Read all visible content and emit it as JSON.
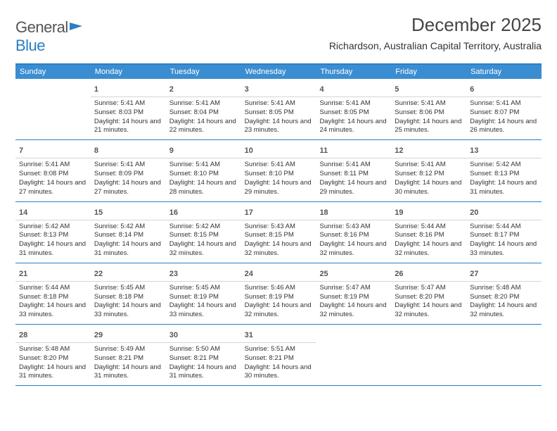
{
  "brand": {
    "name_a": "General",
    "name_b": "Blue"
  },
  "title": "December 2025",
  "location": "Richardson, Australian Capital Territory, Australia",
  "colors": {
    "header_rule": "#2a7ec7",
    "header_bg": "#3b8dd1",
    "header_text": "#ffffff",
    "body_text": "#333333",
    "daynum_border": "#cfd6dc"
  },
  "day_names": [
    "Sunday",
    "Monday",
    "Tuesday",
    "Wednesday",
    "Thursday",
    "Friday",
    "Saturday"
  ],
  "weeks": [
    [
      null,
      {
        "n": "1",
        "sr": "5:41 AM",
        "ss": "8:03 PM",
        "dl": "14 hours and 21 minutes."
      },
      {
        "n": "2",
        "sr": "5:41 AM",
        "ss": "8:04 PM",
        "dl": "14 hours and 22 minutes."
      },
      {
        "n": "3",
        "sr": "5:41 AM",
        "ss": "8:05 PM",
        "dl": "14 hours and 23 minutes."
      },
      {
        "n": "4",
        "sr": "5:41 AM",
        "ss": "8:05 PM",
        "dl": "14 hours and 24 minutes."
      },
      {
        "n": "5",
        "sr": "5:41 AM",
        "ss": "8:06 PM",
        "dl": "14 hours and 25 minutes."
      },
      {
        "n": "6",
        "sr": "5:41 AM",
        "ss": "8:07 PM",
        "dl": "14 hours and 26 minutes."
      }
    ],
    [
      {
        "n": "7",
        "sr": "5:41 AM",
        "ss": "8:08 PM",
        "dl": "14 hours and 27 minutes."
      },
      {
        "n": "8",
        "sr": "5:41 AM",
        "ss": "8:09 PM",
        "dl": "14 hours and 27 minutes."
      },
      {
        "n": "9",
        "sr": "5:41 AM",
        "ss": "8:10 PM",
        "dl": "14 hours and 28 minutes."
      },
      {
        "n": "10",
        "sr": "5:41 AM",
        "ss": "8:10 PM",
        "dl": "14 hours and 29 minutes."
      },
      {
        "n": "11",
        "sr": "5:41 AM",
        "ss": "8:11 PM",
        "dl": "14 hours and 29 minutes."
      },
      {
        "n": "12",
        "sr": "5:41 AM",
        "ss": "8:12 PM",
        "dl": "14 hours and 30 minutes."
      },
      {
        "n": "13",
        "sr": "5:42 AM",
        "ss": "8:13 PM",
        "dl": "14 hours and 31 minutes."
      }
    ],
    [
      {
        "n": "14",
        "sr": "5:42 AM",
        "ss": "8:13 PM",
        "dl": "14 hours and 31 minutes."
      },
      {
        "n": "15",
        "sr": "5:42 AM",
        "ss": "8:14 PM",
        "dl": "14 hours and 31 minutes."
      },
      {
        "n": "16",
        "sr": "5:42 AM",
        "ss": "8:15 PM",
        "dl": "14 hours and 32 minutes."
      },
      {
        "n": "17",
        "sr": "5:43 AM",
        "ss": "8:15 PM",
        "dl": "14 hours and 32 minutes."
      },
      {
        "n": "18",
        "sr": "5:43 AM",
        "ss": "8:16 PM",
        "dl": "14 hours and 32 minutes."
      },
      {
        "n": "19",
        "sr": "5:44 AM",
        "ss": "8:16 PM",
        "dl": "14 hours and 32 minutes."
      },
      {
        "n": "20",
        "sr": "5:44 AM",
        "ss": "8:17 PM",
        "dl": "14 hours and 33 minutes."
      }
    ],
    [
      {
        "n": "21",
        "sr": "5:44 AM",
        "ss": "8:18 PM",
        "dl": "14 hours and 33 minutes."
      },
      {
        "n": "22",
        "sr": "5:45 AM",
        "ss": "8:18 PM",
        "dl": "14 hours and 33 minutes."
      },
      {
        "n": "23",
        "sr": "5:45 AM",
        "ss": "8:19 PM",
        "dl": "14 hours and 33 minutes."
      },
      {
        "n": "24",
        "sr": "5:46 AM",
        "ss": "8:19 PM",
        "dl": "14 hours and 32 minutes."
      },
      {
        "n": "25",
        "sr": "5:47 AM",
        "ss": "8:19 PM",
        "dl": "14 hours and 32 minutes."
      },
      {
        "n": "26",
        "sr": "5:47 AM",
        "ss": "8:20 PM",
        "dl": "14 hours and 32 minutes."
      },
      {
        "n": "27",
        "sr": "5:48 AM",
        "ss": "8:20 PM",
        "dl": "14 hours and 32 minutes."
      }
    ],
    [
      {
        "n": "28",
        "sr": "5:48 AM",
        "ss": "8:20 PM",
        "dl": "14 hours and 31 minutes."
      },
      {
        "n": "29",
        "sr": "5:49 AM",
        "ss": "8:21 PM",
        "dl": "14 hours and 31 minutes."
      },
      {
        "n": "30",
        "sr": "5:50 AM",
        "ss": "8:21 PM",
        "dl": "14 hours and 31 minutes."
      },
      {
        "n": "31",
        "sr": "5:51 AM",
        "ss": "8:21 PM",
        "dl": "14 hours and 30 minutes."
      },
      null,
      null,
      null
    ]
  ],
  "labels": {
    "sunrise": "Sunrise:",
    "sunset": "Sunset:",
    "daylight": "Daylight:"
  }
}
